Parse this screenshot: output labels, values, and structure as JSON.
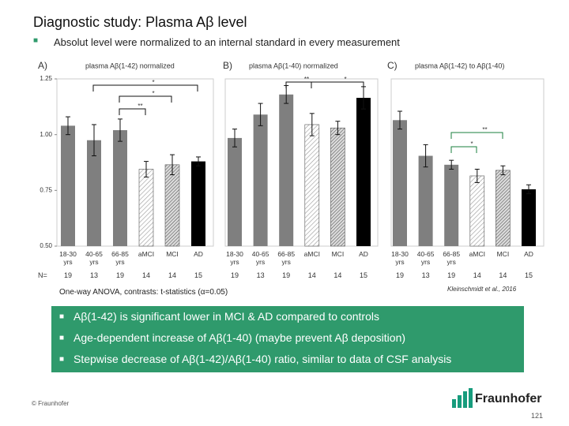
{
  "title": "Diagnostic study: Plasma Aβ level",
  "subtitle": "Absolut level were normalized to an internal standard in every measurement",
  "n_label": "N=",
  "chart_data": [
    {
      "type": "bar",
      "panel": "A)",
      "title": "plasma Aβ(1-42) normalized",
      "categories": [
        "18-30 yrs",
        "40-65 yrs",
        "66-85 yrs",
        "aMCI",
        "MCI",
        "AD"
      ],
      "n": [
        19,
        13,
        19,
        14,
        14,
        15
      ],
      "values": [
        1.04,
        0.975,
        1.02,
        0.845,
        0.865,
        0.88
      ],
      "errors": [
        0.04,
        0.07,
        0.05,
        0.035,
        0.045,
        0.02
      ],
      "fills": [
        "#7f7f7f",
        "#7f7f7f",
        "#7f7f7f",
        "hatch-light",
        "hatch-dark",
        "#000000"
      ],
      "ylim": [
        0.5,
        1.25
      ],
      "yticks": [
        {
          "value": 0.5,
          "label": "0.50"
        },
        {
          "value": 0.75,
          "label": "0.75"
        },
        {
          "value": 1,
          "label": "1.00"
        },
        {
          "value": 1.25,
          "label": "1.25"
        }
      ],
      "annotations": [
        "*",
        "*",
        "**"
      ]
    },
    {
      "type": "bar",
      "panel": "B)",
      "title": "plasma Aβ(1-40) normalized",
      "categories": [
        "18-30 yrs",
        "40-65 yrs",
        "66-85 yrs",
        "aMCI",
        "MCI",
        "AD"
      ],
      "n": [
        19,
        13,
        19,
        14,
        14,
        15
      ],
      "values": [
        0.985,
        1.09,
        1.18,
        1.045,
        1.03,
        1.165
      ],
      "errors": [
        0.04,
        0.05,
        0.04,
        0.05,
        0.03,
        0.05
      ],
      "fills": [
        "#7f7f7f",
        "#7f7f7f",
        "#7f7f7f",
        "hatch-light",
        "hatch-dark",
        "#000000"
      ],
      "ylim": [
        0.5,
        1.25
      ],
      "annotations": [
        "**",
        "*"
      ]
    },
    {
      "type": "bar",
      "panel": "C)",
      "title": "plasma Aβ(1-42) to Aβ(1-40)",
      "categories": [
        "18-30 yrs",
        "40-65 yrs",
        "66-85 yrs",
        "aMCI",
        "MCI",
        "AD"
      ],
      "n": [
        19,
        13,
        19,
        14,
        14,
        15
      ],
      "values": [
        1.065,
        0.905,
        0.865,
        0.815,
        0.84,
        0.755
      ],
      "errors": [
        0.04,
        0.05,
        0.02,
        0.03,
        0.02,
        0.02
      ],
      "fills": [
        "#7f7f7f",
        "#7f7f7f",
        "#7f7f7f",
        "hatch-light",
        "hatch-dark",
        "#000000"
      ],
      "ylim": [
        0.5,
        1.25
      ],
      "annotations": [
        "**",
        "*"
      ]
    }
  ],
  "footnote": "One-way ANOVA, contrasts: t-statistics (α=0.05)",
  "citation": "Kleinschmidt et al., 2016",
  "bullets": [
    "Aβ(1-42) is significant lower in MCI & AD compared to controls",
    "Age-dependent increase of Aβ(1-40) (maybe prevent Aβ deposition)",
    "Stepwise decrease of Aβ(1-42)/Aβ(1-40) ratio, similar to data of CSF analysis"
  ],
  "copyright": "© Fraunhofer",
  "logo": "Fraunhofer",
  "page_number": "121"
}
